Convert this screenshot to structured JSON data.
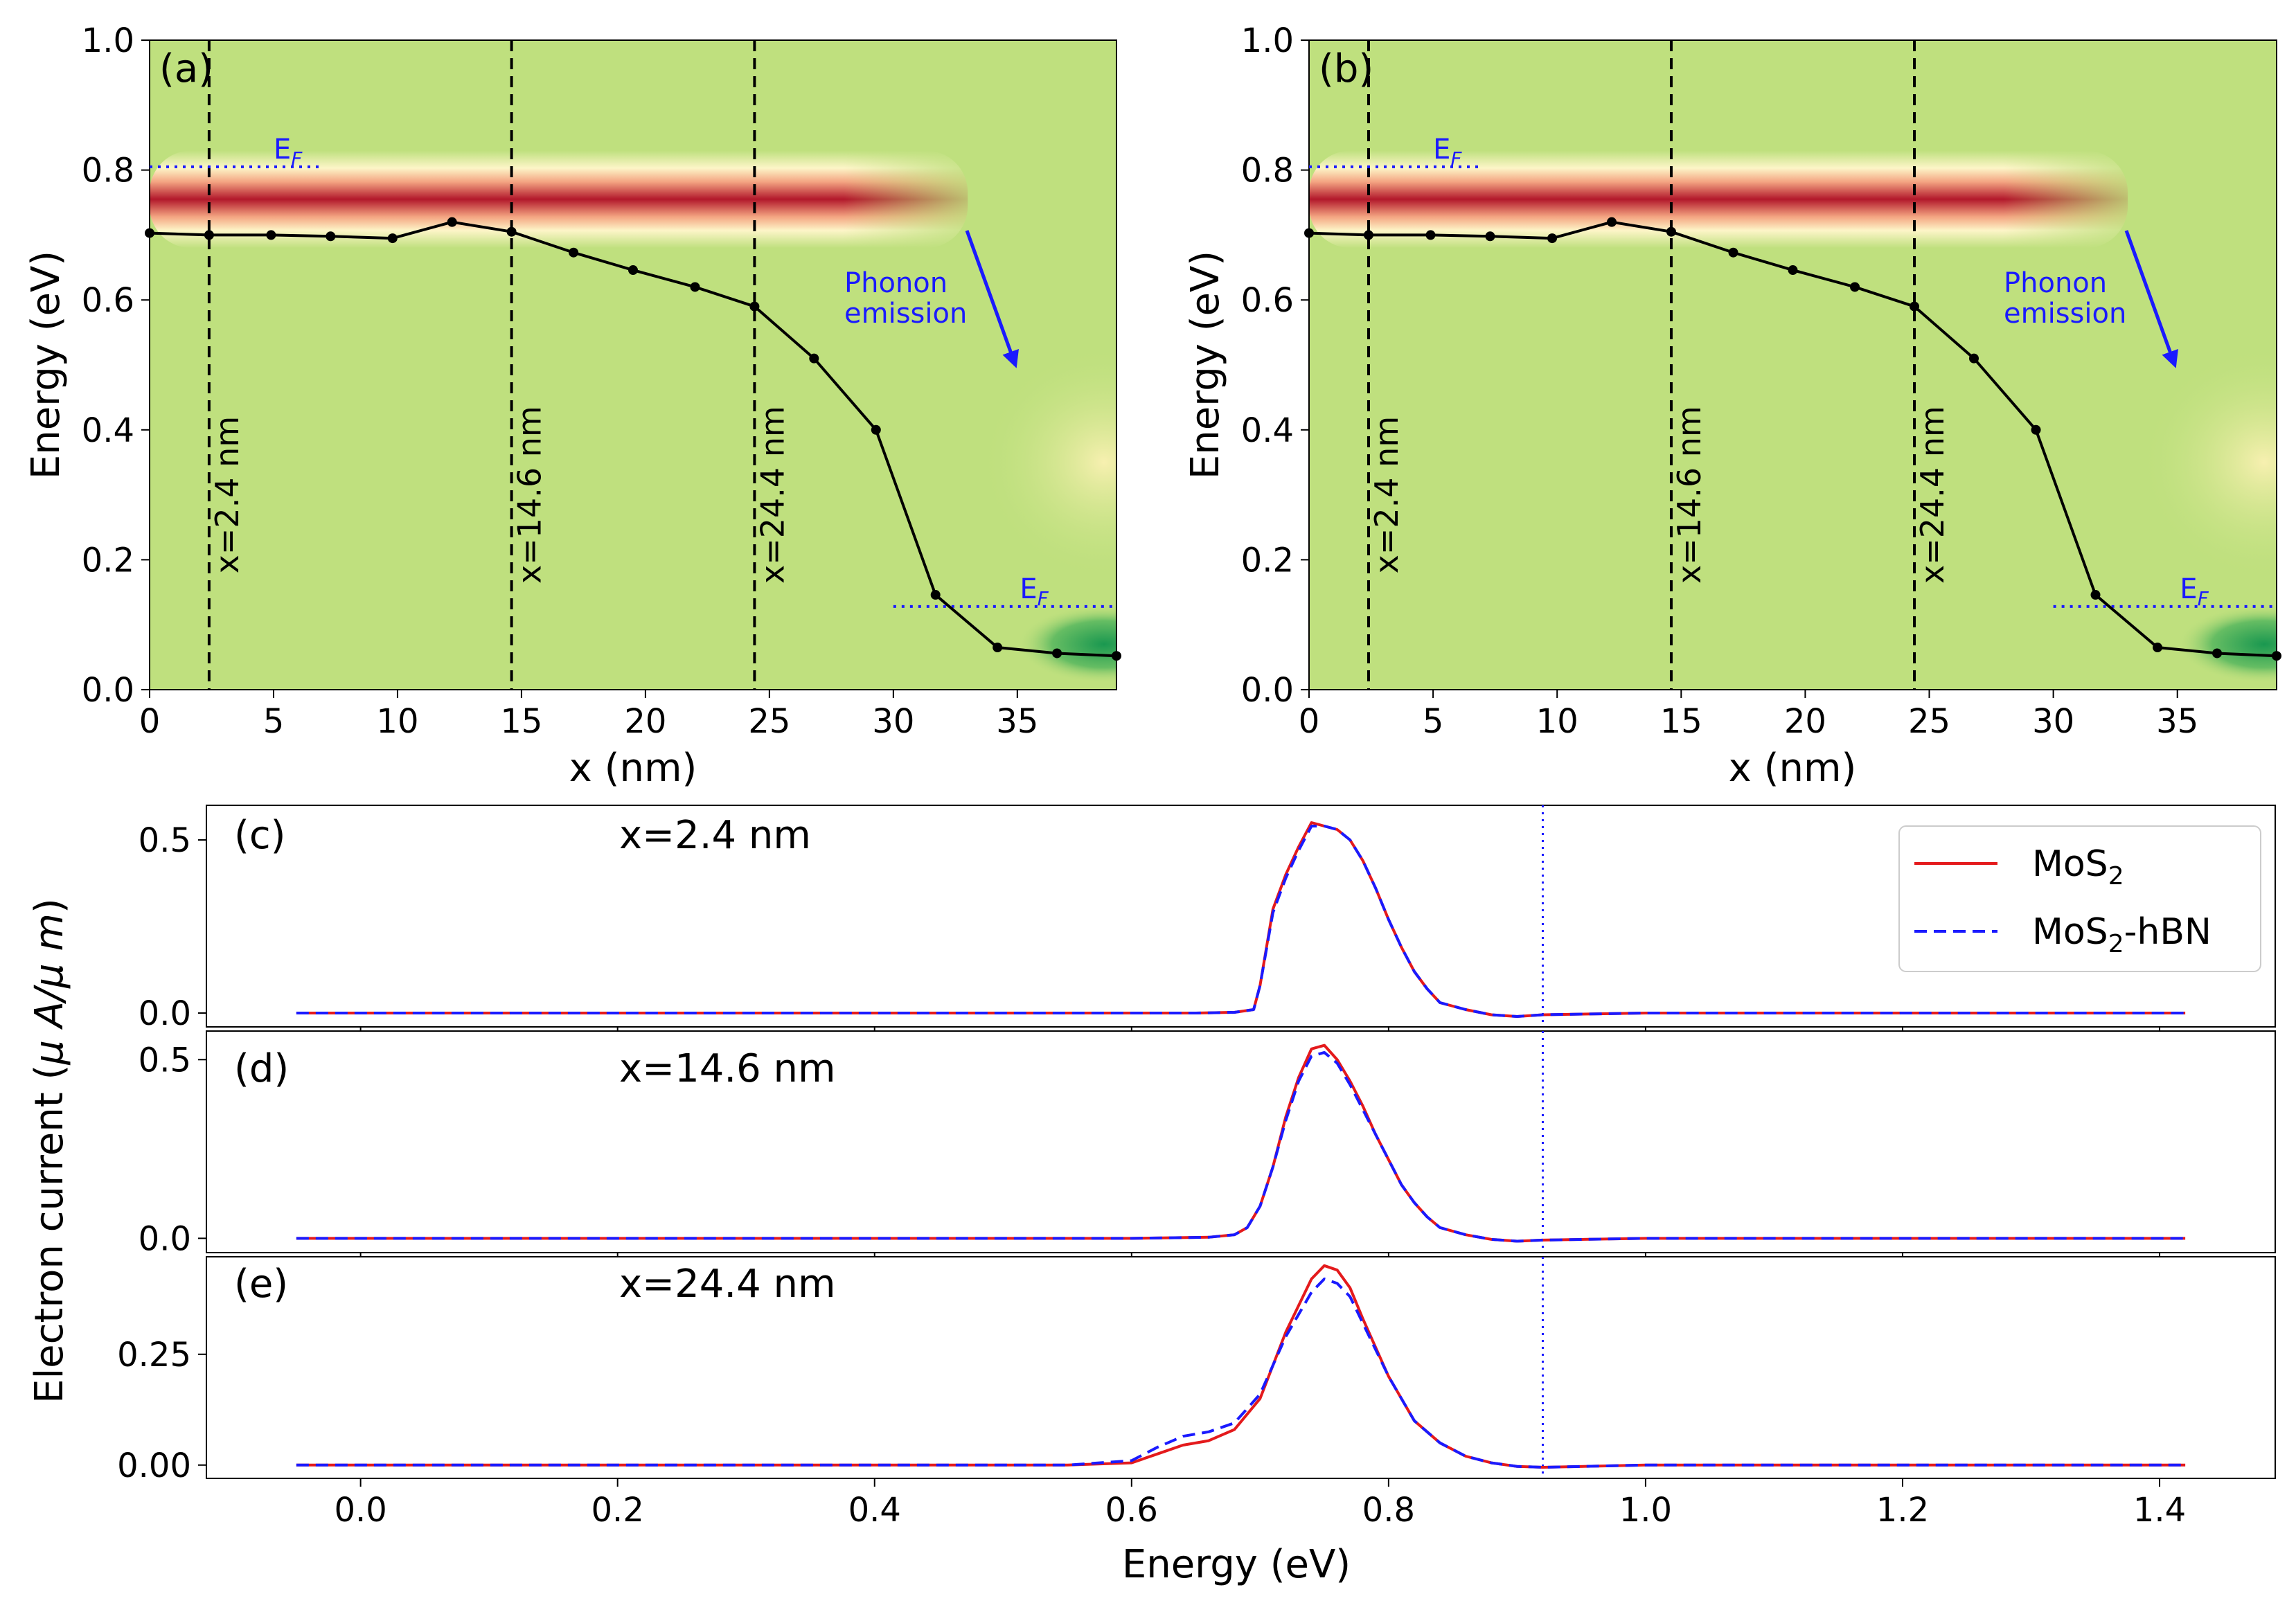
{
  "colors": {
    "background_green": "#bfe07e",
    "band_red": "#b2182b",
    "band_orange": "#f4a582",
    "band_cream": "#fdf5c8",
    "green_dark": "#1a9850",
    "profile": "#000000",
    "fermi": "#1a1aff",
    "mos2": "#e41a1c",
    "mos2_hbn": "#1a1aff"
  },
  "chart_data": [
    {
      "id": "a",
      "type": "heatmap",
      "panel_label": "(a)",
      "xlabel": "x (nm)",
      "ylabel": "Energy (eV)",
      "xlim": [
        0,
        39
      ],
      "ylim": [
        0,
        1.0
      ],
      "xticks": [
        "0",
        "5",
        "10",
        "15",
        "20",
        "25",
        "30",
        "35"
      ],
      "xtick_values": [
        0,
        5,
        10,
        15,
        20,
        25,
        30,
        35
      ],
      "yticks": [
        "0.0",
        "0.2",
        "0.4",
        "0.6",
        "0.8",
        "1.0"
      ],
      "ytick_values": [
        0,
        0.2,
        0.4,
        0.6,
        0.8,
        1.0
      ],
      "band_edge": {
        "x": [
          0,
          2.4,
          4.9,
          7.3,
          9.8,
          12.2,
          14.6,
          17.1,
          19.5,
          22.0,
          24.4,
          26.8,
          29.3,
          31.7,
          34.2,
          36.6,
          39.0
        ],
        "y": [
          0.703,
          0.7,
          0.7,
          0.698,
          0.695,
          0.72,
          0.705,
          0.673,
          0.646,
          0.62,
          0.59,
          0.51,
          0.4,
          0.146,
          0.065,
          0.056,
          0.052
        ]
      },
      "vertical_cuts": [
        {
          "x": 2.4,
          "label": "x=2.4 nm"
        },
        {
          "x": 14.6,
          "label": "x=14.6 nm"
        },
        {
          "x": 24.4,
          "label": "x=24.4 nm"
        }
      ],
      "fermi_levels": [
        {
          "label": "E",
          "subscript": "F",
          "energy": 0.805,
          "x_range": [
            0,
            7
          ]
        },
        {
          "label": "E",
          "subscript": "F",
          "energy": 0.128,
          "x_range": [
            30,
            39
          ]
        }
      ],
      "current_band": {
        "center_energy": 0.755,
        "width_energy": 0.075,
        "extends_to_x": 33
      },
      "annotation": {
        "line1": "Phonon",
        "line2": "emission"
      }
    },
    {
      "id": "b",
      "type": "heatmap",
      "panel_label": "(b)",
      "xlabel": "x (nm)",
      "ylabel": "Energy (eV)",
      "xlim": [
        0,
        39
      ],
      "ylim": [
        0,
        1.0
      ],
      "xticks": [
        "0",
        "5",
        "10",
        "15",
        "20",
        "25",
        "30",
        "35"
      ],
      "xtick_values": [
        0,
        5,
        10,
        15,
        20,
        25,
        30,
        35
      ],
      "yticks": [
        "0.0",
        "0.2",
        "0.4",
        "0.6",
        "0.8",
        "1.0"
      ],
      "ytick_values": [
        0,
        0.2,
        0.4,
        0.6,
        0.8,
        1.0
      ],
      "band_edge": {
        "x": [
          0,
          2.4,
          4.9,
          7.3,
          9.8,
          12.2,
          14.6,
          17.1,
          19.5,
          22.0,
          24.4,
          26.8,
          29.3,
          31.7,
          34.2,
          36.6,
          39.0
        ],
        "y": [
          0.703,
          0.7,
          0.7,
          0.698,
          0.695,
          0.72,
          0.705,
          0.673,
          0.646,
          0.62,
          0.59,
          0.51,
          0.4,
          0.146,
          0.065,
          0.056,
          0.052
        ]
      },
      "vertical_cuts": [
        {
          "x": 2.4,
          "label": "x=2.4 nm"
        },
        {
          "x": 14.6,
          "label": "x=14.6 nm"
        },
        {
          "x": 24.4,
          "label": "x=24.4 nm"
        }
      ],
      "fermi_levels": [
        {
          "label": "E",
          "subscript": "F",
          "energy": 0.805,
          "x_range": [
            0,
            7
          ]
        },
        {
          "label": "E",
          "subscript": "F",
          "energy": 0.128,
          "x_range": [
            30,
            39
          ]
        }
      ],
      "current_band": {
        "center_energy": 0.755,
        "width_energy": 0.075,
        "extends_to_x": 33
      },
      "annotation": {
        "line1": "Phonon",
        "line2": "emission"
      }
    },
    {
      "id": "c",
      "type": "line",
      "panel_label": "(c)",
      "title": "x=2.4 nm",
      "xlim": [
        -0.12,
        1.49
      ],
      "ylim": [
        -0.04,
        0.6
      ],
      "yticks": [
        "0.0",
        "0.5"
      ],
      "ytick_values": [
        0,
        0.5
      ],
      "fermi_energy": 0.92,
      "series": [
        {
          "name": "MoS2",
          "style": "solid",
          "x": [
            -0.05,
            0.55,
            0.65,
            0.68,
            0.695,
            0.7,
            0.71,
            0.72,
            0.73,
            0.74,
            0.75,
            0.76,
            0.77,
            0.78,
            0.79,
            0.8,
            0.81,
            0.82,
            0.83,
            0.84,
            0.86,
            0.88,
            0.9,
            0.92,
            1.0,
            1.42
          ],
          "y": [
            0,
            0,
            0,
            0.002,
            0.01,
            0.08,
            0.3,
            0.4,
            0.48,
            0.55,
            0.54,
            0.53,
            0.5,
            0.44,
            0.36,
            0.27,
            0.19,
            0.12,
            0.07,
            0.03,
            0.01,
            -0.005,
            -0.01,
            -0.005,
            0,
            0
          ]
        },
        {
          "name": "MoS2-hBN",
          "style": "dashed",
          "x": [
            -0.05,
            0.55,
            0.65,
            0.68,
            0.695,
            0.7,
            0.71,
            0.72,
            0.73,
            0.74,
            0.75,
            0.76,
            0.77,
            0.78,
            0.79,
            0.8,
            0.81,
            0.82,
            0.83,
            0.84,
            0.86,
            0.88,
            0.9,
            0.92,
            1.0,
            1.42
          ],
          "y": [
            0,
            0,
            0,
            0.002,
            0.01,
            0.08,
            0.29,
            0.39,
            0.47,
            0.54,
            0.54,
            0.53,
            0.5,
            0.44,
            0.36,
            0.27,
            0.19,
            0.12,
            0.07,
            0.03,
            0.01,
            -0.005,
            -0.01,
            -0.005,
            0,
            0
          ]
        }
      ],
      "legend": {
        "placement": "top-right",
        "items": [
          {
            "label": "MoS",
            "subscript": "2",
            "suffix": "",
            "style": "solid"
          },
          {
            "label": "MoS",
            "subscript": "2",
            "suffix": "-hBN",
            "style": "dashed"
          }
        ]
      }
    },
    {
      "id": "d",
      "type": "line",
      "panel_label": "(d)",
      "title": "x=14.6 nm",
      "xlim": [
        -0.12,
        1.49
      ],
      "ylim": [
        -0.04,
        0.58
      ],
      "yticks": [
        "0.0",
        "0.5"
      ],
      "ytick_values": [
        0,
        0.5
      ],
      "fermi_energy": 0.92,
      "series": [
        {
          "name": "MoS2",
          "style": "solid",
          "x": [
            -0.05,
            0.6,
            0.66,
            0.68,
            0.69,
            0.7,
            0.71,
            0.72,
            0.73,
            0.74,
            0.75,
            0.76,
            0.77,
            0.78,
            0.79,
            0.8,
            0.81,
            0.82,
            0.83,
            0.84,
            0.86,
            0.88,
            0.9,
            0.92,
            1.0,
            1.42
          ],
          "y": [
            0,
            0,
            0.003,
            0.01,
            0.03,
            0.09,
            0.2,
            0.34,
            0.45,
            0.53,
            0.54,
            0.5,
            0.44,
            0.37,
            0.29,
            0.22,
            0.15,
            0.1,
            0.06,
            0.03,
            0.01,
            -0.003,
            -0.008,
            -0.005,
            0,
            0
          ]
        },
        {
          "name": "MoS2-hBN",
          "style": "dashed",
          "x": [
            -0.05,
            0.6,
            0.66,
            0.68,
            0.69,
            0.7,
            0.71,
            0.72,
            0.73,
            0.74,
            0.75,
            0.76,
            0.77,
            0.78,
            0.79,
            0.8,
            0.81,
            0.82,
            0.83,
            0.84,
            0.86,
            0.88,
            0.9,
            0.92,
            1.0,
            1.42
          ],
          "y": [
            0,
            0,
            0.003,
            0.01,
            0.03,
            0.09,
            0.2,
            0.33,
            0.44,
            0.51,
            0.52,
            0.49,
            0.43,
            0.36,
            0.29,
            0.22,
            0.15,
            0.1,
            0.06,
            0.03,
            0.01,
            -0.003,
            -0.008,
            -0.005,
            0,
            0
          ]
        }
      ]
    },
    {
      "id": "e",
      "type": "line",
      "panel_label": "(e)",
      "title": "x=24.4 nm",
      "xlim": [
        -0.12,
        1.49
      ],
      "ylim": [
        -0.03,
        0.47
      ],
      "yticks": [
        "0.00",
        "0.25"
      ],
      "ytick_values": [
        0,
        0.25
      ],
      "fermi_energy": 0.92,
      "series": [
        {
          "name": "MoS2",
          "style": "solid",
          "x": [
            -0.05,
            0.55,
            0.6,
            0.62,
            0.64,
            0.66,
            0.68,
            0.7,
            0.72,
            0.74,
            0.75,
            0.76,
            0.77,
            0.78,
            0.8,
            0.82,
            0.84,
            0.86,
            0.88,
            0.9,
            0.92,
            1.0,
            1.42
          ],
          "y": [
            0,
            0,
            0.005,
            0.025,
            0.045,
            0.055,
            0.08,
            0.15,
            0.3,
            0.42,
            0.45,
            0.44,
            0.4,
            0.33,
            0.2,
            0.1,
            0.05,
            0.02,
            0.005,
            -0.003,
            -0.005,
            0,
            0
          ]
        },
        {
          "name": "MoS2-hBN",
          "style": "dashed",
          "x": [
            -0.05,
            0.55,
            0.6,
            0.62,
            0.64,
            0.66,
            0.68,
            0.7,
            0.72,
            0.74,
            0.75,
            0.76,
            0.77,
            0.78,
            0.8,
            0.82,
            0.84,
            0.86,
            0.88,
            0.9,
            0.92,
            1.0,
            1.42
          ],
          "y": [
            0,
            0,
            0.01,
            0.04,
            0.065,
            0.075,
            0.095,
            0.16,
            0.29,
            0.39,
            0.42,
            0.41,
            0.38,
            0.32,
            0.2,
            0.1,
            0.05,
            0.02,
            0.005,
            -0.003,
            -0.005,
            0,
            0
          ]
        }
      ],
      "xticks": [
        "0.0",
        "0.2",
        "0.4",
        "0.6",
        "0.8",
        "1.0",
        "1.2",
        "1.4"
      ],
      "xtick_values": [
        0,
        0.2,
        0.4,
        0.6,
        0.8,
        1.0,
        1.2,
        1.4
      ],
      "xlabel": "Energy (eV)"
    }
  ],
  "shared_ylabel": {
    "prefix": "Electron current (",
    "mu1": "μ",
    "mid": " A/",
    "mu2": "μ",
    "unit": " m",
    "suffix": ")"
  }
}
